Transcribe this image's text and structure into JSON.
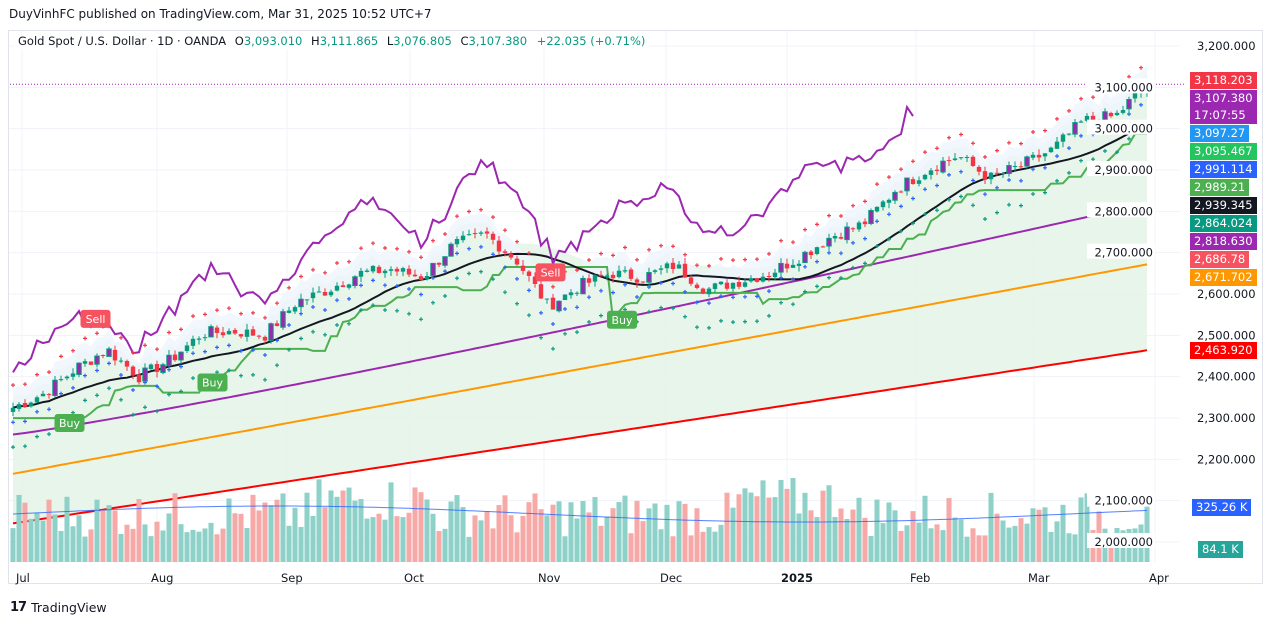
{
  "publisher_line": "DuyVinhFC published on TradingView.com, Mar 31, 2025 10:52 UTC+7",
  "legend": {
    "symbol": "Gold Spot / U.S. Dollar · 1D · OANDA",
    "open_key": "O",
    "open": "3,093.010",
    "high_key": "H",
    "high": "3,111.865",
    "low_key": "L",
    "low": "3,076.805",
    "close_key": "C",
    "close": "3,107.380",
    "change": "+22.035 (+0.71%)"
  },
  "price_labels": [
    {
      "text": "3,118.203",
      "color": "#f23645",
      "price": 3118.203
    },
    {
      "text": "3,107.380",
      "sub": "17:07:55",
      "color": "#9c27b0",
      "price": 3107.38
    },
    {
      "text": "3,097.27",
      "color": "#2196f3",
      "price": 3097.27
    },
    {
      "text": "3,095.467",
      "color": "#22c55e",
      "price": 3095.467
    },
    {
      "text": "2,991.114",
      "color": "#2962ff",
      "price": 2991.114
    },
    {
      "text": "2,989.21",
      "color": "#4caf50",
      "price": 2989.21
    },
    {
      "text": "2,939.345",
      "color": "#131722",
      "price": 2939.345
    },
    {
      "text": "2,864.024",
      "color": "#089981",
      "price": 2864.024
    },
    {
      "text": "2,818.630",
      "color": "#9c27b0",
      "price": 2818.63
    },
    {
      "text": "2,686.78",
      "color": "#f7525f",
      "price": 2686.78
    },
    {
      "text": "2,671.702",
      "color": "#ff9800",
      "price": 2671.702
    },
    {
      "text": "2,463.920",
      "color": "#ff0000",
      "price": 2463.92
    }
  ],
  "volume_labels": [
    {
      "text": "325.26 K",
      "color": "#2962ff"
    },
    {
      "text": "84.1 K",
      "color": "#26a69a"
    }
  ],
  "signals": [
    {
      "text": "Sell",
      "type": "sell",
      "month_index": 0.65
    },
    {
      "text": "Buy",
      "type": "buy",
      "month_index": 0.45
    },
    {
      "text": "Buy",
      "type": "buy",
      "month_index": 1.55
    },
    {
      "text": "Sell",
      "type": "sell",
      "month_index": 4.15
    },
    {
      "text": "Buy",
      "type": "buy",
      "month_index": 4.7
    }
  ],
  "footer": {
    "logo": "17",
    "brand": "TradingView"
  },
  "chart_data": {
    "type": "candlestick",
    "title": "Gold Spot / U.S. Dollar · 1D · OANDA",
    "xlabel": "",
    "ylabel": "",
    "ylim": [
      2050,
      3250
    ],
    "y_ticks": [
      "3,200.000",
      "3,100.000",
      "3,000.000",
      "2,900.000",
      "2,800.000",
      "2,700.000",
      "2,600.000",
      "2,500.000",
      "2,400.000",
      "2,300.000",
      "2,200.000",
      "2,100.000",
      "2,000.000"
    ],
    "y_tick_values": [
      3200,
      3100,
      3000,
      2900,
      2800,
      2700,
      2600,
      2500,
      2400,
      2300,
      2200,
      2100,
      2000
    ],
    "x_ticks": [
      "Jul",
      "Aug",
      "Sep",
      "Oct",
      "Nov",
      "Dec",
      "2025",
      "Feb",
      "Mar",
      "Apr"
    ],
    "grid": true,
    "anchors_close": [
      [
        "Jul",
        2325
      ],
      [
        "Jul",
        2360
      ],
      [
        "Jul",
        2420
      ],
      [
        "Jul",
        2465
      ],
      [
        "Aug",
        2400
      ],
      [
        "Aug",
        2440
      ],
      [
        "Aug",
        2505
      ],
      [
        "Aug",
        2510
      ],
      [
        "Sep",
        2500
      ],
      [
        "Sep",
        2580
      ],
      [
        "Sep",
        2610
      ],
      [
        "Sep",
        2650
      ],
      [
        "Oct",
        2660
      ],
      [
        "Oct",
        2640
      ],
      [
        "Oct",
        2720
      ],
      [
        "Oct",
        2745
      ],
      [
        "Nov",
        2680
      ],
      [
        "Nov",
        2570
      ],
      [
        "Nov",
        2620
      ],
      [
        "Nov",
        2650
      ],
      [
        "Dec",
        2640
      ],
      [
        "Dec",
        2670
      ],
      [
        "Dec",
        2610
      ],
      [
        "Dec",
        2630
      ],
      [
        "2025",
        2650
      ],
      [
        "2025",
        2690
      ],
      [
        "2025",
        2740
      ],
      [
        "2025",
        2770
      ],
      [
        "Feb",
        2850
      ],
      [
        "Feb",
        2900
      ],
      [
        "Feb",
        2935
      ],
      [
        "Feb",
        2880
      ],
      [
        "Mar",
        2910
      ],
      [
        "Mar",
        2950
      ],
      [
        "Mar",
        3020
      ],
      [
        "Mar",
        3030
      ],
      [
        "Apr",
        3107
      ]
    ],
    "last": {
      "open": 3093.01,
      "high": 3111.865,
      "low": 3076.805,
      "close": 3107.38,
      "change": 22.035,
      "change_pct": 0.71
    },
    "indicator_last_values": {
      "ma_black": 2939.345,
      "ma_purple": 2818.63,
      "ma_orange": 2671.702,
      "ma_red": 2463.92,
      "psar_upper": 3118.203,
      "psar_mid": 2991.114,
      "psar_lower": 2864.024,
      "trail_green": 3095.467,
      "volume": 84100,
      "volume_ma": 325260
    },
    "series": [
      {
        "name": "MA black",
        "color": "#131722"
      },
      {
        "name": "MA purple",
        "color": "#9c27b0"
      },
      {
        "name": "MA orange",
        "color": "#ff9800"
      },
      {
        "name": "MA red",
        "color": "#ff0000"
      },
      {
        "name": "Trailing stop",
        "color": "#4caf50"
      },
      {
        "name": "Oscillator purple",
        "color": "#9c27b0"
      },
      {
        "name": "Volume",
        "color": "#26a69a"
      },
      {
        "name": "Volume MA",
        "color": "#2962ff"
      }
    ]
  }
}
